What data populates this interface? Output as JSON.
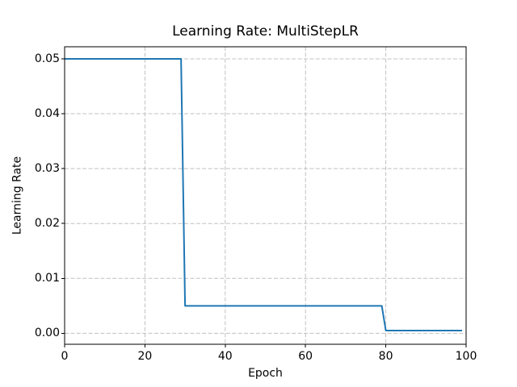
{
  "title": "Learning Rate: MultiStepLR",
  "colors": {
    "line": "#1f77b4",
    "grid": "#c0c0c0",
    "spine": "#000000",
    "text": "#000000",
    "background": "#ffffff"
  },
  "chart_data": {
    "type": "line",
    "title": "Learning Rate: MultiStepLR",
    "xlabel": "Epoch",
    "ylabel": "Learning Rate",
    "grid": true,
    "grid_style": "dashed",
    "legend": "none",
    "xlim": [
      0,
      100
    ],
    "ylim": [
      -0.002,
      0.0522
    ],
    "x_ticks": [
      {
        "label": "0",
        "value": 0
      },
      {
        "label": "20",
        "value": 20
      },
      {
        "label": "40",
        "value": 40
      },
      {
        "label": "60",
        "value": 60
      },
      {
        "label": "80",
        "value": 80
      },
      {
        "label": "100",
        "value": 100
      }
    ],
    "y_ticks": [
      {
        "label": "0.00",
        "value": 0.0
      },
      {
        "label": "0.01",
        "value": 0.01
      },
      {
        "label": "0.02",
        "value": 0.02
      },
      {
        "label": "0.03",
        "value": 0.03
      },
      {
        "label": "0.04",
        "value": 0.04
      },
      {
        "label": "0.05",
        "value": 0.05
      }
    ],
    "x": [
      0,
      1,
      2,
      3,
      4,
      5,
      6,
      7,
      8,
      9,
      10,
      11,
      12,
      13,
      14,
      15,
      16,
      17,
      18,
      19,
      20,
      21,
      22,
      23,
      24,
      25,
      26,
      27,
      28,
      29,
      30,
      31,
      32,
      33,
      34,
      35,
      36,
      37,
      38,
      39,
      40,
      41,
      42,
      43,
      44,
      45,
      46,
      47,
      48,
      49,
      50,
      51,
      52,
      53,
      54,
      55,
      56,
      57,
      58,
      59,
      60,
      61,
      62,
      63,
      64,
      65,
      66,
      67,
      68,
      69,
      70,
      71,
      72,
      73,
      74,
      75,
      76,
      77,
      78,
      79,
      80,
      81,
      82,
      83,
      84,
      85,
      86,
      87,
      88,
      89,
      90,
      91,
      92,
      93,
      94,
      95,
      96,
      97,
      98,
      99
    ],
    "series": [
      {
        "name": "learning_rate",
        "values": [
          0.05,
          0.05,
          0.05,
          0.05,
          0.05,
          0.05,
          0.05,
          0.05,
          0.05,
          0.05,
          0.05,
          0.05,
          0.05,
          0.05,
          0.05,
          0.05,
          0.05,
          0.05,
          0.05,
          0.05,
          0.05,
          0.05,
          0.05,
          0.05,
          0.05,
          0.05,
          0.05,
          0.05,
          0.05,
          0.05,
          0.005,
          0.005,
          0.005,
          0.005,
          0.005,
          0.005,
          0.005,
          0.005,
          0.005,
          0.005,
          0.005,
          0.005,
          0.005,
          0.005,
          0.005,
          0.005,
          0.005,
          0.005,
          0.005,
          0.005,
          0.005,
          0.005,
          0.005,
          0.005,
          0.005,
          0.005,
          0.005,
          0.005,
          0.005,
          0.005,
          0.005,
          0.005,
          0.005,
          0.005,
          0.005,
          0.005,
          0.005,
          0.005,
          0.005,
          0.005,
          0.005,
          0.005,
          0.005,
          0.005,
          0.005,
          0.005,
          0.005,
          0.005,
          0.005,
          0.005,
          0.0005,
          0.0005,
          0.0005,
          0.0005,
          0.0005,
          0.0005,
          0.0005,
          0.0005,
          0.0005,
          0.0005,
          0.0005,
          0.0005,
          0.0005,
          0.0005,
          0.0005,
          0.0005,
          0.0005,
          0.0005,
          0.0005,
          0.0005
        ]
      }
    ]
  }
}
